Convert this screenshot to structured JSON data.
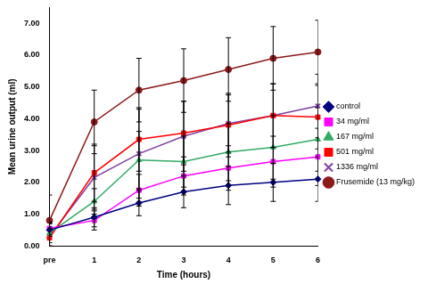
{
  "chart_data": {
    "type": "line",
    "x_label": "Time (hours)",
    "y_label": "Mean urine output (ml)",
    "categories": [
      "pre",
      "1",
      "2",
      "3",
      "4",
      "5",
      "6"
    ],
    "ylim": [
      0,
      7.5
    ],
    "yticks": [
      {
        "value": 0,
        "label": "0.00"
      },
      {
        "value": 1,
        "label": "1.00"
      },
      {
        "value": 2,
        "label": "2.00"
      },
      {
        "value": 3,
        "label": "3.00"
      },
      {
        "value": 4,
        "label": "4.00"
      },
      {
        "value": 5,
        "label": "5.00"
      },
      {
        "value": 6,
        "label": "6.00"
      },
      {
        "value": 7,
        "label": "7.00"
      }
    ],
    "grid": false,
    "legend": "right",
    "series": [
      {
        "name": "control",
        "color": "#000080",
        "marker": "diamond",
        "values": [
          0.5,
          0.9,
          1.35,
          1.7,
          1.9,
          2.0,
          2.1
        ],
        "errors": [
          0.2,
          0.3,
          0.4,
          0.5,
          0.6,
          0.6,
          0.7
        ]
      },
      {
        "name": "34 mg/ml",
        "color": "#ff00ff",
        "marker": "square",
        "values": [
          0.55,
          0.8,
          1.75,
          2.2,
          2.45,
          2.65,
          2.8
        ],
        "errors": [
          0.2,
          0.3,
          0.5,
          0.6,
          0.7,
          0.8,
          0.9
        ]
      },
      {
        "name": "167 mg/ml",
        "color": "#33aa66",
        "marker": "triangle",
        "values": [
          0.4,
          1.4,
          2.7,
          2.65,
          2.95,
          3.1,
          3.35
        ],
        "errors": [
          0.3,
          0.4,
          0.9,
          0.8,
          0.9,
          1.0,
          1.0
        ]
      },
      {
        "name": "501 mg/ml",
        "color": "#ff0000",
        "marker": "square",
        "values": [
          0.25,
          2.3,
          3.35,
          3.55,
          3.8,
          4.1,
          4.05
        ],
        "errors": [
          0.3,
          0.9,
          1.0,
          1.0,
          1.0,
          1.0,
          1.0
        ]
      },
      {
        "name": "1336 mg/ml",
        "color": "#8040a0",
        "marker": "x",
        "values": [
          0.3,
          2.15,
          2.9,
          3.45,
          3.85,
          4.1,
          4.4
        ],
        "errors": [
          0.3,
          1.0,
          1.4,
          1.1,
          0.9,
          1.0,
          1.0
        ]
      },
      {
        "name": "Frusemide (13 mg/kg)",
        "color": "#8b1a1a",
        "marker": "circle",
        "values": [
          0.8,
          3.9,
          4.9,
          5.2,
          5.55,
          5.9,
          6.1
        ],
        "errors": [
          0.8,
          1.0,
          1.0,
          1.0,
          1.0,
          1.0,
          1.0
        ]
      }
    ]
  }
}
